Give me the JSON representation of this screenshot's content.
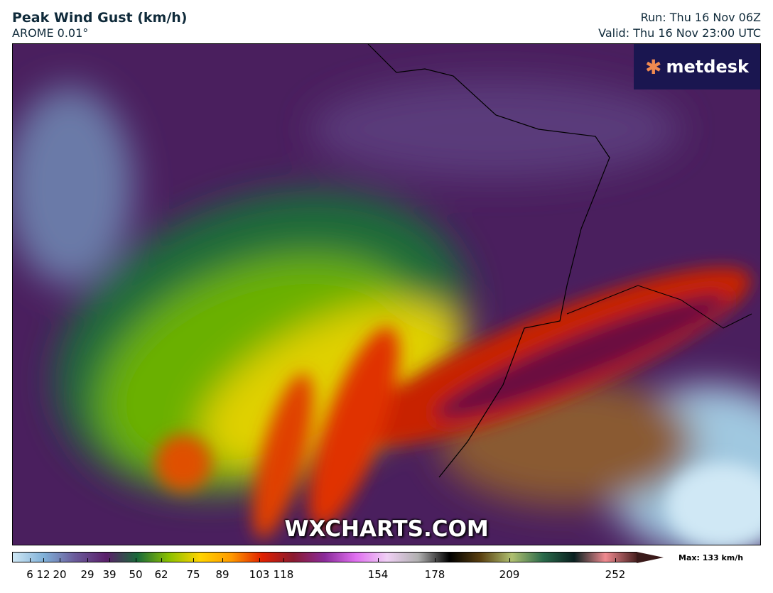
{
  "header": {
    "title": "Peak Wind Gust (km/h)",
    "model": "AROME 0.01°",
    "run": "Run: Thu 16 Nov 06Z",
    "valid": "Valid: Thu 16 Nov 23:00 UTC"
  },
  "map": {
    "logo": "metdesk",
    "watermark": "WXCHARTS.COM",
    "background_color": "#4a1f5e"
  },
  "colorbar": {
    "max_label": "Max: 133 km/h",
    "ticks": [
      "6",
      "12",
      "20",
      "29",
      "39",
      "50",
      "62",
      "75",
      "89",
      "103",
      "118",
      "154",
      "178",
      "209",
      "252"
    ],
    "colors": [
      "#cfe8f5",
      "#7fb0d8",
      "#6a5a9a",
      "#5a1f6a",
      "#1a6a3a",
      "#8ac000",
      "#ffd400",
      "#ff9a00",
      "#e02000",
      "#8a1a30",
      "#8a2a9a",
      "#e070f0",
      "#f0d0f5",
      "#b0b0b0",
      "#000000",
      "#5a4010",
      "#b0c070",
      "#2a6a4a",
      "#0a2020",
      "#f08a90",
      "#4a2020"
    ]
  }
}
